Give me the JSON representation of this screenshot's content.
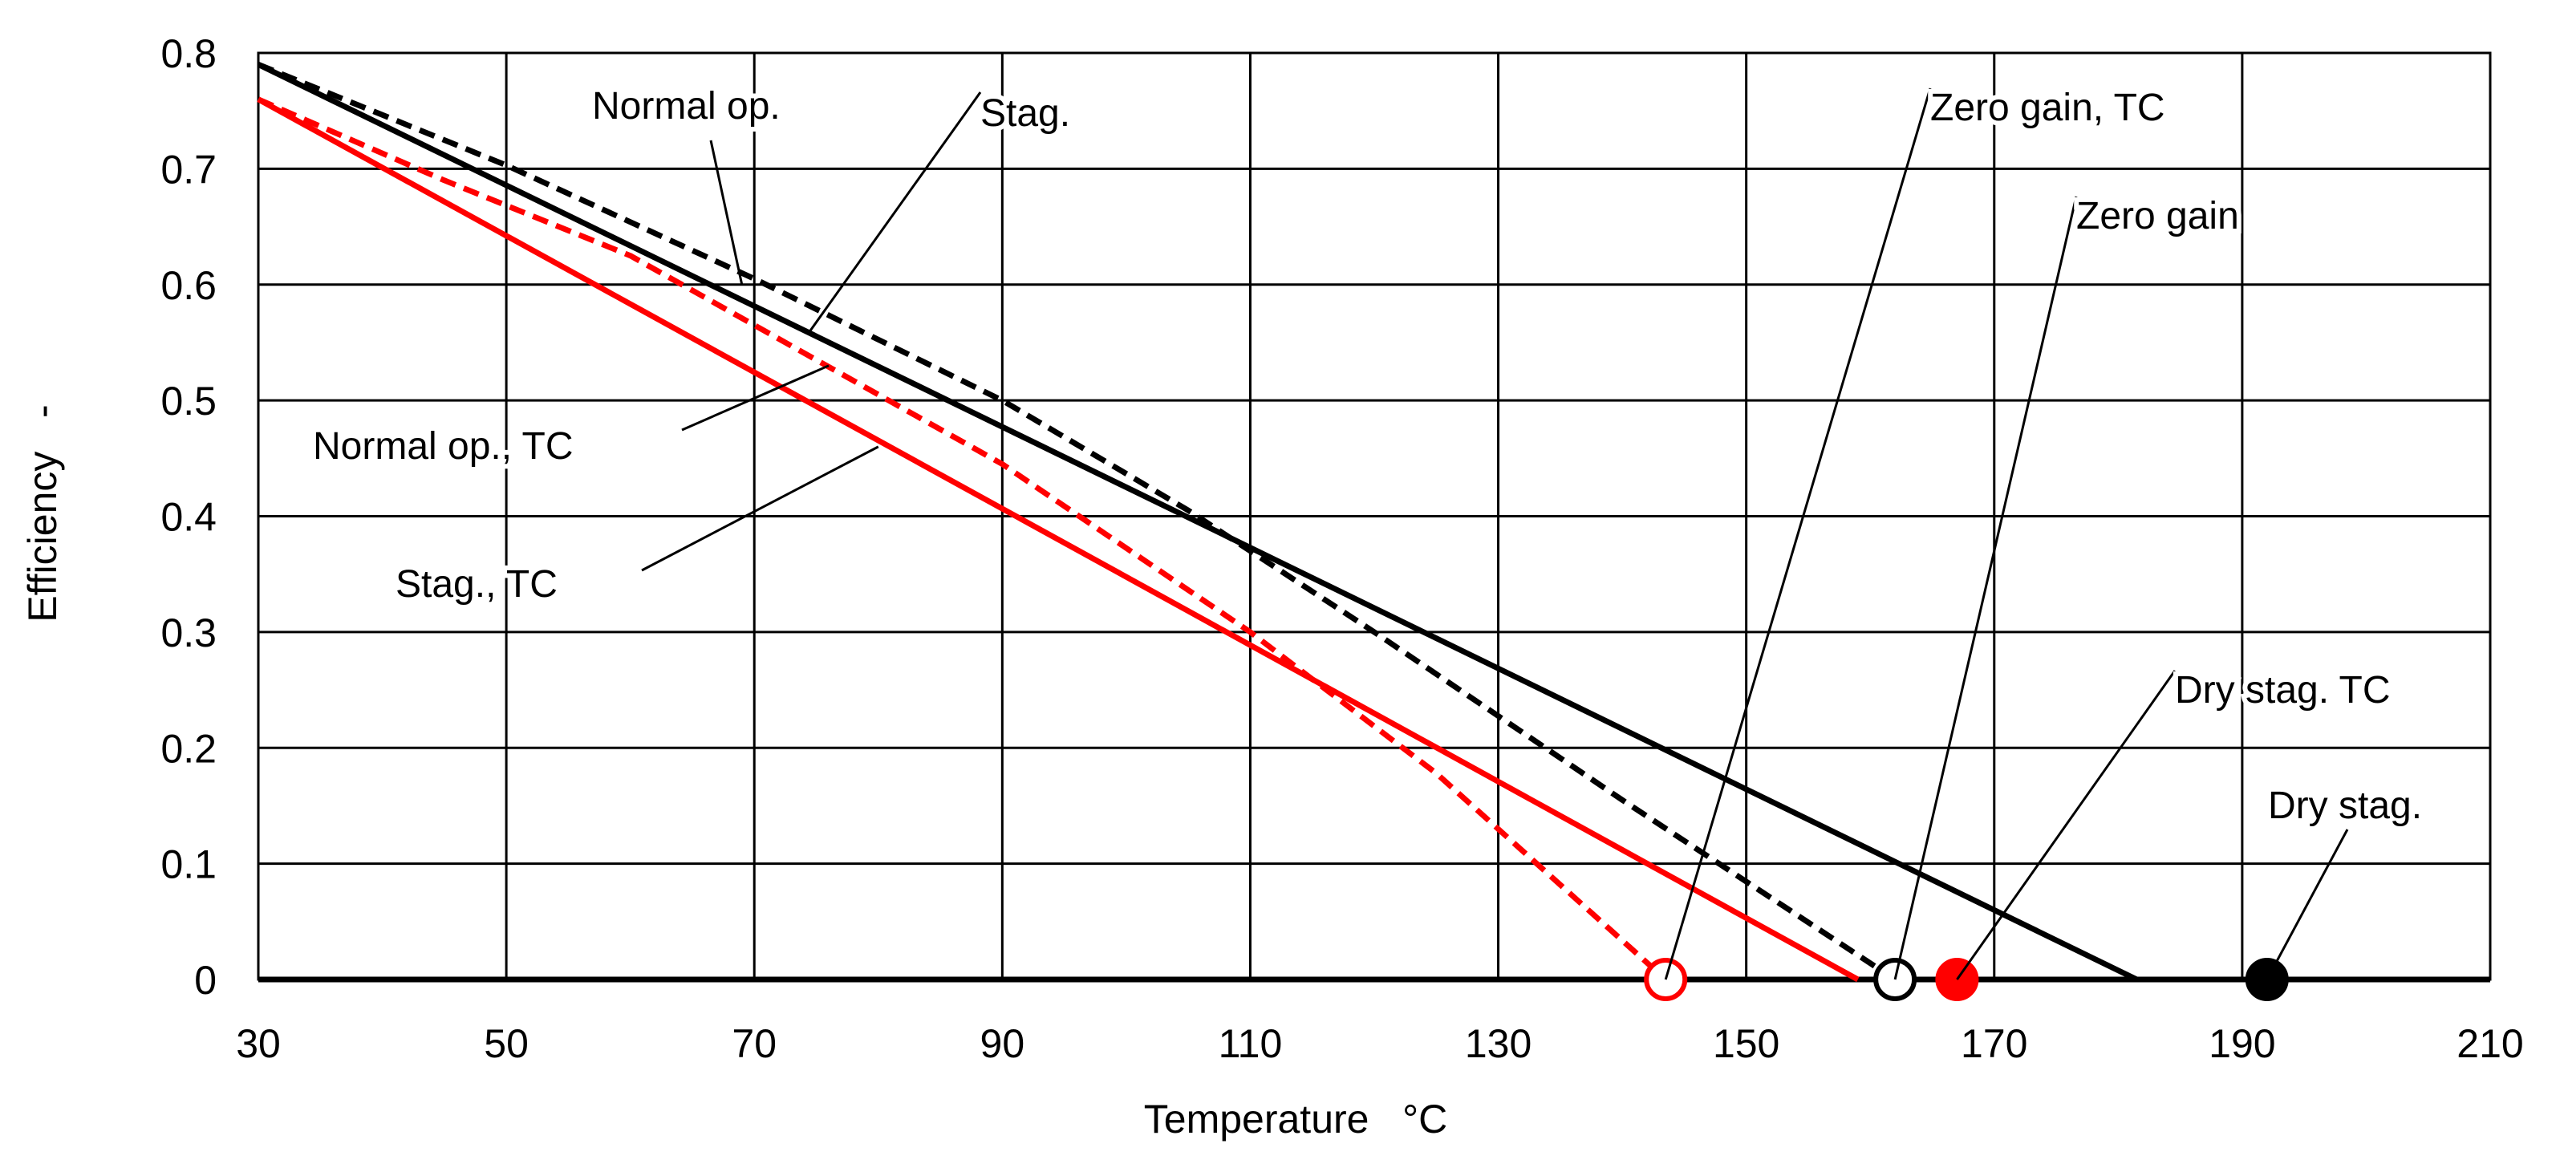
{
  "chart_data": {
    "type": "line",
    "title": "",
    "xlabel": "Temperature   °C",
    "ylabel": "Efficiency   -",
    "xlim": [
      30,
      210
    ],
    "ylim": [
      0,
      0.8
    ],
    "xticks": [
      "30",
      "50",
      "70",
      "90",
      "110",
      "130",
      "150",
      "170",
      "190",
      "210"
    ],
    "yticks": [
      "0",
      "0.1",
      "0.2",
      "0.3",
      "0.4",
      "0.5",
      "0.6",
      "0.7",
      "0.8"
    ],
    "grid": true,
    "series": [
      {
        "name": "Normal op.",
        "color": "#000000",
        "style": "dashed",
        "x": [
          30,
          50,
          70,
          90,
          105,
          120,
          140,
          162
        ],
        "y": [
          0.79,
          0.703,
          0.605,
          0.5,
          0.405,
          0.3,
          0.155,
          0.0
        ]
      },
      {
        "name": "Stag.",
        "color": "#000000",
        "style": "solid",
        "x": [
          30,
          181.5
        ],
        "y": [
          0.79,
          0.0
        ]
      },
      {
        "name": "Normal op., TC",
        "color": "#ff0000",
        "style": "dashed",
        "x": [
          30,
          45,
          60,
          75,
          90,
          110,
          125,
          143.5
        ],
        "y": [
          0.76,
          0.69,
          0.625,
          0.535,
          0.445,
          0.3,
          0.178,
          0.0
        ]
      },
      {
        "name": "Stag., TC",
        "color": "#ff0000",
        "style": "solid",
        "x": [
          30,
          159
        ],
        "y": [
          0.76,
          0.0
        ]
      }
    ],
    "markers": [
      {
        "name": "Zero gain, TC",
        "x": 143.5,
        "y": 0.0,
        "color": "#ff0000",
        "fill": "none"
      },
      {
        "name": "Zero gain",
        "x": 162,
        "y": 0.0,
        "color": "#000000",
        "fill": "none"
      },
      {
        "name": "Dry stag. TC",
        "x": 167,
        "y": 0.0,
        "color": "#ff0000",
        "fill": "#ff0000"
      },
      {
        "name": "Dry stag.",
        "x": 192,
        "y": 0.0,
        "color": "#000000",
        "fill": "#000000"
      }
    ],
    "annotations": [
      {
        "text": "Normal op.",
        "target_x": 69,
        "target_y": 0.6
      },
      {
        "text": "Stag.",
        "target_x": 74.5,
        "target_y": 0.56
      },
      {
        "text": "Normal op., TC",
        "target_x": 76,
        "target_y": 0.53
      },
      {
        "text": "Stag., TC",
        "target_x": 80,
        "target_y": 0.46
      },
      {
        "text": "Zero gain, TC",
        "target_x": 143.5,
        "target_y": 0.0
      },
      {
        "text": "Zero gain",
        "target_x": 162,
        "target_y": 0.0
      },
      {
        "text": "Dry stag. TC",
        "target_x": 167,
        "target_y": 0.0
      },
      {
        "text": "Dry stag.",
        "target_x": 192,
        "target_y": 0.0
      }
    ]
  }
}
